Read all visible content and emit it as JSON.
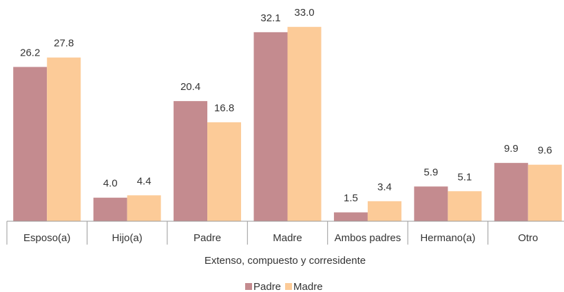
{
  "chart_data": {
    "type": "bar",
    "x_label": "Extenso, compuesto y corresidente",
    "categories": [
      "Esposo(a)",
      "Hijo(a)",
      "Padre",
      "Madre",
      "Ambos padres",
      "Hermano(a)",
      "Otro"
    ],
    "series": [
      {
        "name": "Padre",
        "color": "#c48b8f",
        "values": [
          26.2,
          4.0,
          20.4,
          32.1,
          1.5,
          5.9,
          9.9
        ],
        "value_labels": [
          "26.2",
          "4.0",
          "20.4",
          "32.1",
          "1.5",
          "5.9",
          "9.9"
        ]
      },
      {
        "name": "Madre",
        "color": "#fccb98",
        "values": [
          27.8,
          4.4,
          16.8,
          33.0,
          3.4,
          5.1,
          9.6
        ],
        "value_labels": [
          "27.8",
          "4.4",
          "16.8",
          "33.0",
          "3.4",
          "5.1",
          "9.6"
        ]
      }
    ],
    "ylim": [
      0,
      35
    ],
    "legend": "bottom"
  }
}
